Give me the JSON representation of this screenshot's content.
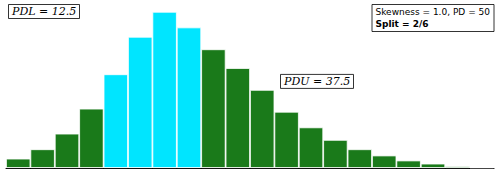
{
  "chart_data": {
    "type": "bar",
    "categories": [
      null,
      null,
      null,
      null,
      null,
      null,
      null,
      null,
      null,
      null,
      null,
      null,
      null,
      null,
      null,
      null,
      null,
      null,
      null,
      null
    ],
    "values": [
      1.5,
      3.0,
      5.5,
      9.5,
      15.0,
      21.0,
      25.0,
      22.5,
      19.0,
      16.0,
      12.5,
      9.0,
      6.5,
      4.5,
      3.0,
      2.0,
      1.2,
      0.7,
      0.3,
      0.1
    ],
    "colors": [
      "#1a7a1a",
      "#1a7a1a",
      "#1a7a1a",
      "#1a7a1a",
      "#00e5ff",
      "#00e5ff",
      "#00e5ff",
      "#00e5ff",
      "#1a7a1a",
      "#1a7a1a",
      "#1a7a1a",
      "#1a7a1a",
      "#1a7a1a",
      "#1a7a1a",
      "#1a7a1a",
      "#1a7a1a",
      "#1a7a1a",
      "#1a7a1a",
      "#1a7a1a",
      "#1a7a1a"
    ],
    "ylim": [
      0,
      26.25
    ],
    "tick_labels": false,
    "grid": false,
    "annotations": [
      "Skewness = 1.0, PD = 50",
      "Split = 2/6",
      "PDL = 12.5",
      "PDU = 37.5"
    ]
  }
}
